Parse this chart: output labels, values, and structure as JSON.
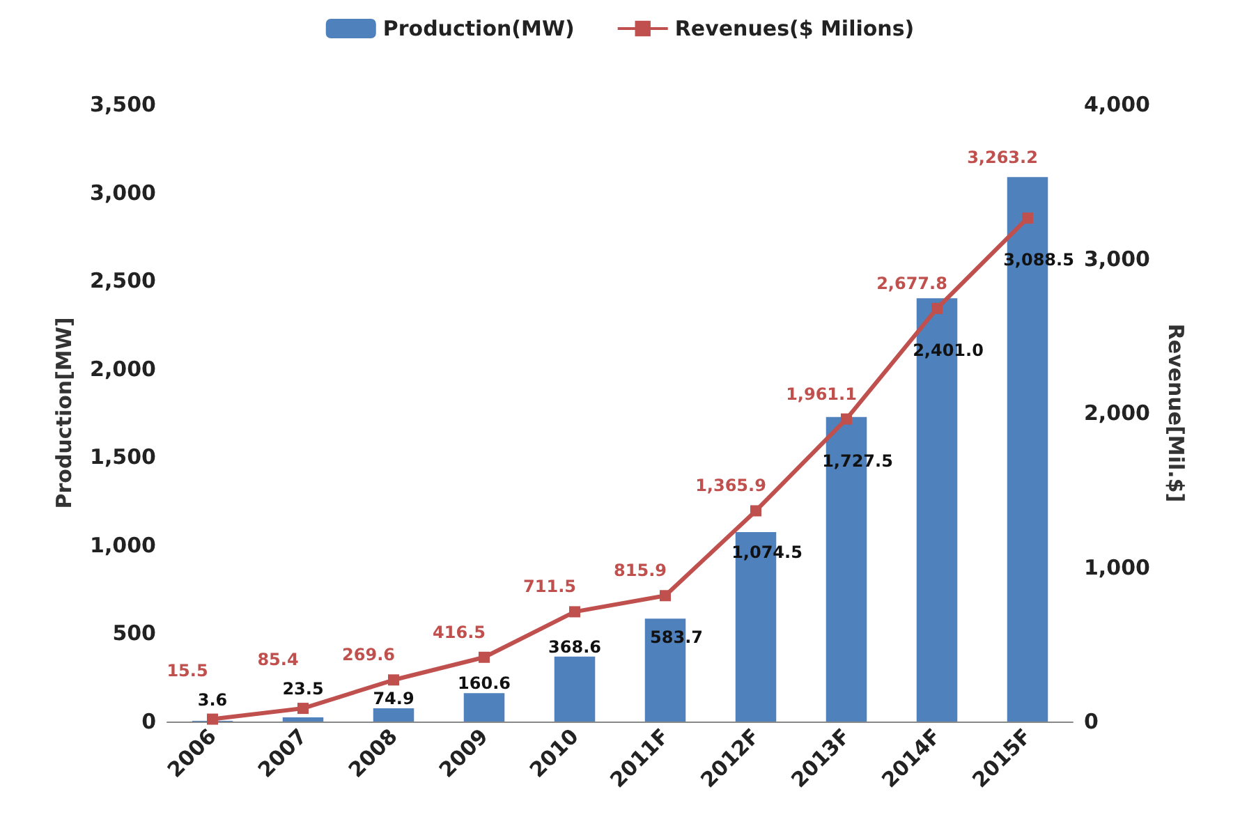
{
  "chart_data": {
    "type": "bar",
    "ylabel": "Production[MW]",
    "y2label": "Revenue[Mil.$]",
    "categories": [
      "2006",
      "2007",
      "2008",
      "2009",
      "2010",
      "2011F",
      "2012F",
      "2013F",
      "2014F",
      "2015F"
    ],
    "series": [
      {
        "name": "Production(MW)",
        "color": "#4f81bd",
        "values": [
          3.6,
          23.5,
          74.9,
          160.6,
          368.6,
          583.7,
          1074.5,
          1727.5,
          2401.0,
          3088.5
        ],
        "value_labels": [
          "3.6",
          "23.5",
          "74.9",
          "160.6",
          "368.6",
          "583.7",
          "1,074.5",
          "1,727.5",
          "2,401.0",
          "3,088.5"
        ]
      },
      {
        "name": "Revenues($ Milions)",
        "type": "line",
        "axis": "y2",
        "color": "#c0504d",
        "marker": "square",
        "values": [
          15.5,
          85.4,
          269.6,
          416.5,
          711.5,
          815.9,
          1365.9,
          1961.1,
          2677.8,
          3263.2
        ],
        "value_labels": [
          "15.5",
          "85.4",
          "269.6",
          "416.5",
          "711.5",
          "815.9",
          "1,365.9",
          "1,961.1",
          "2,677.8",
          "3,263.2"
        ]
      }
    ],
    "ylim": [
      0,
      3500
    ],
    "yticks": [
      {
        "value": 0,
        "label": "0"
      },
      {
        "value": 500,
        "label": "500"
      },
      {
        "value": 1000,
        "label": "1,000"
      },
      {
        "value": 1500,
        "label": "1,500"
      },
      {
        "value": 2000,
        "label": "2,000"
      },
      {
        "value": 2500,
        "label": "2,500"
      },
      {
        "value": 3000,
        "label": "3,000"
      },
      {
        "value": 3500,
        "label": "3,500"
      }
    ],
    "y2lim": [
      0,
      4000
    ],
    "y2ticks": [
      {
        "value": 0,
        "label": "0"
      },
      {
        "value": 1000,
        "label": "1,000"
      },
      {
        "value": 2000,
        "label": "2,000"
      },
      {
        "value": 3000,
        "label": "3,000"
      },
      {
        "value": 4000,
        "label": "4,000"
      }
    ],
    "legend": "top",
    "grid": false
  }
}
